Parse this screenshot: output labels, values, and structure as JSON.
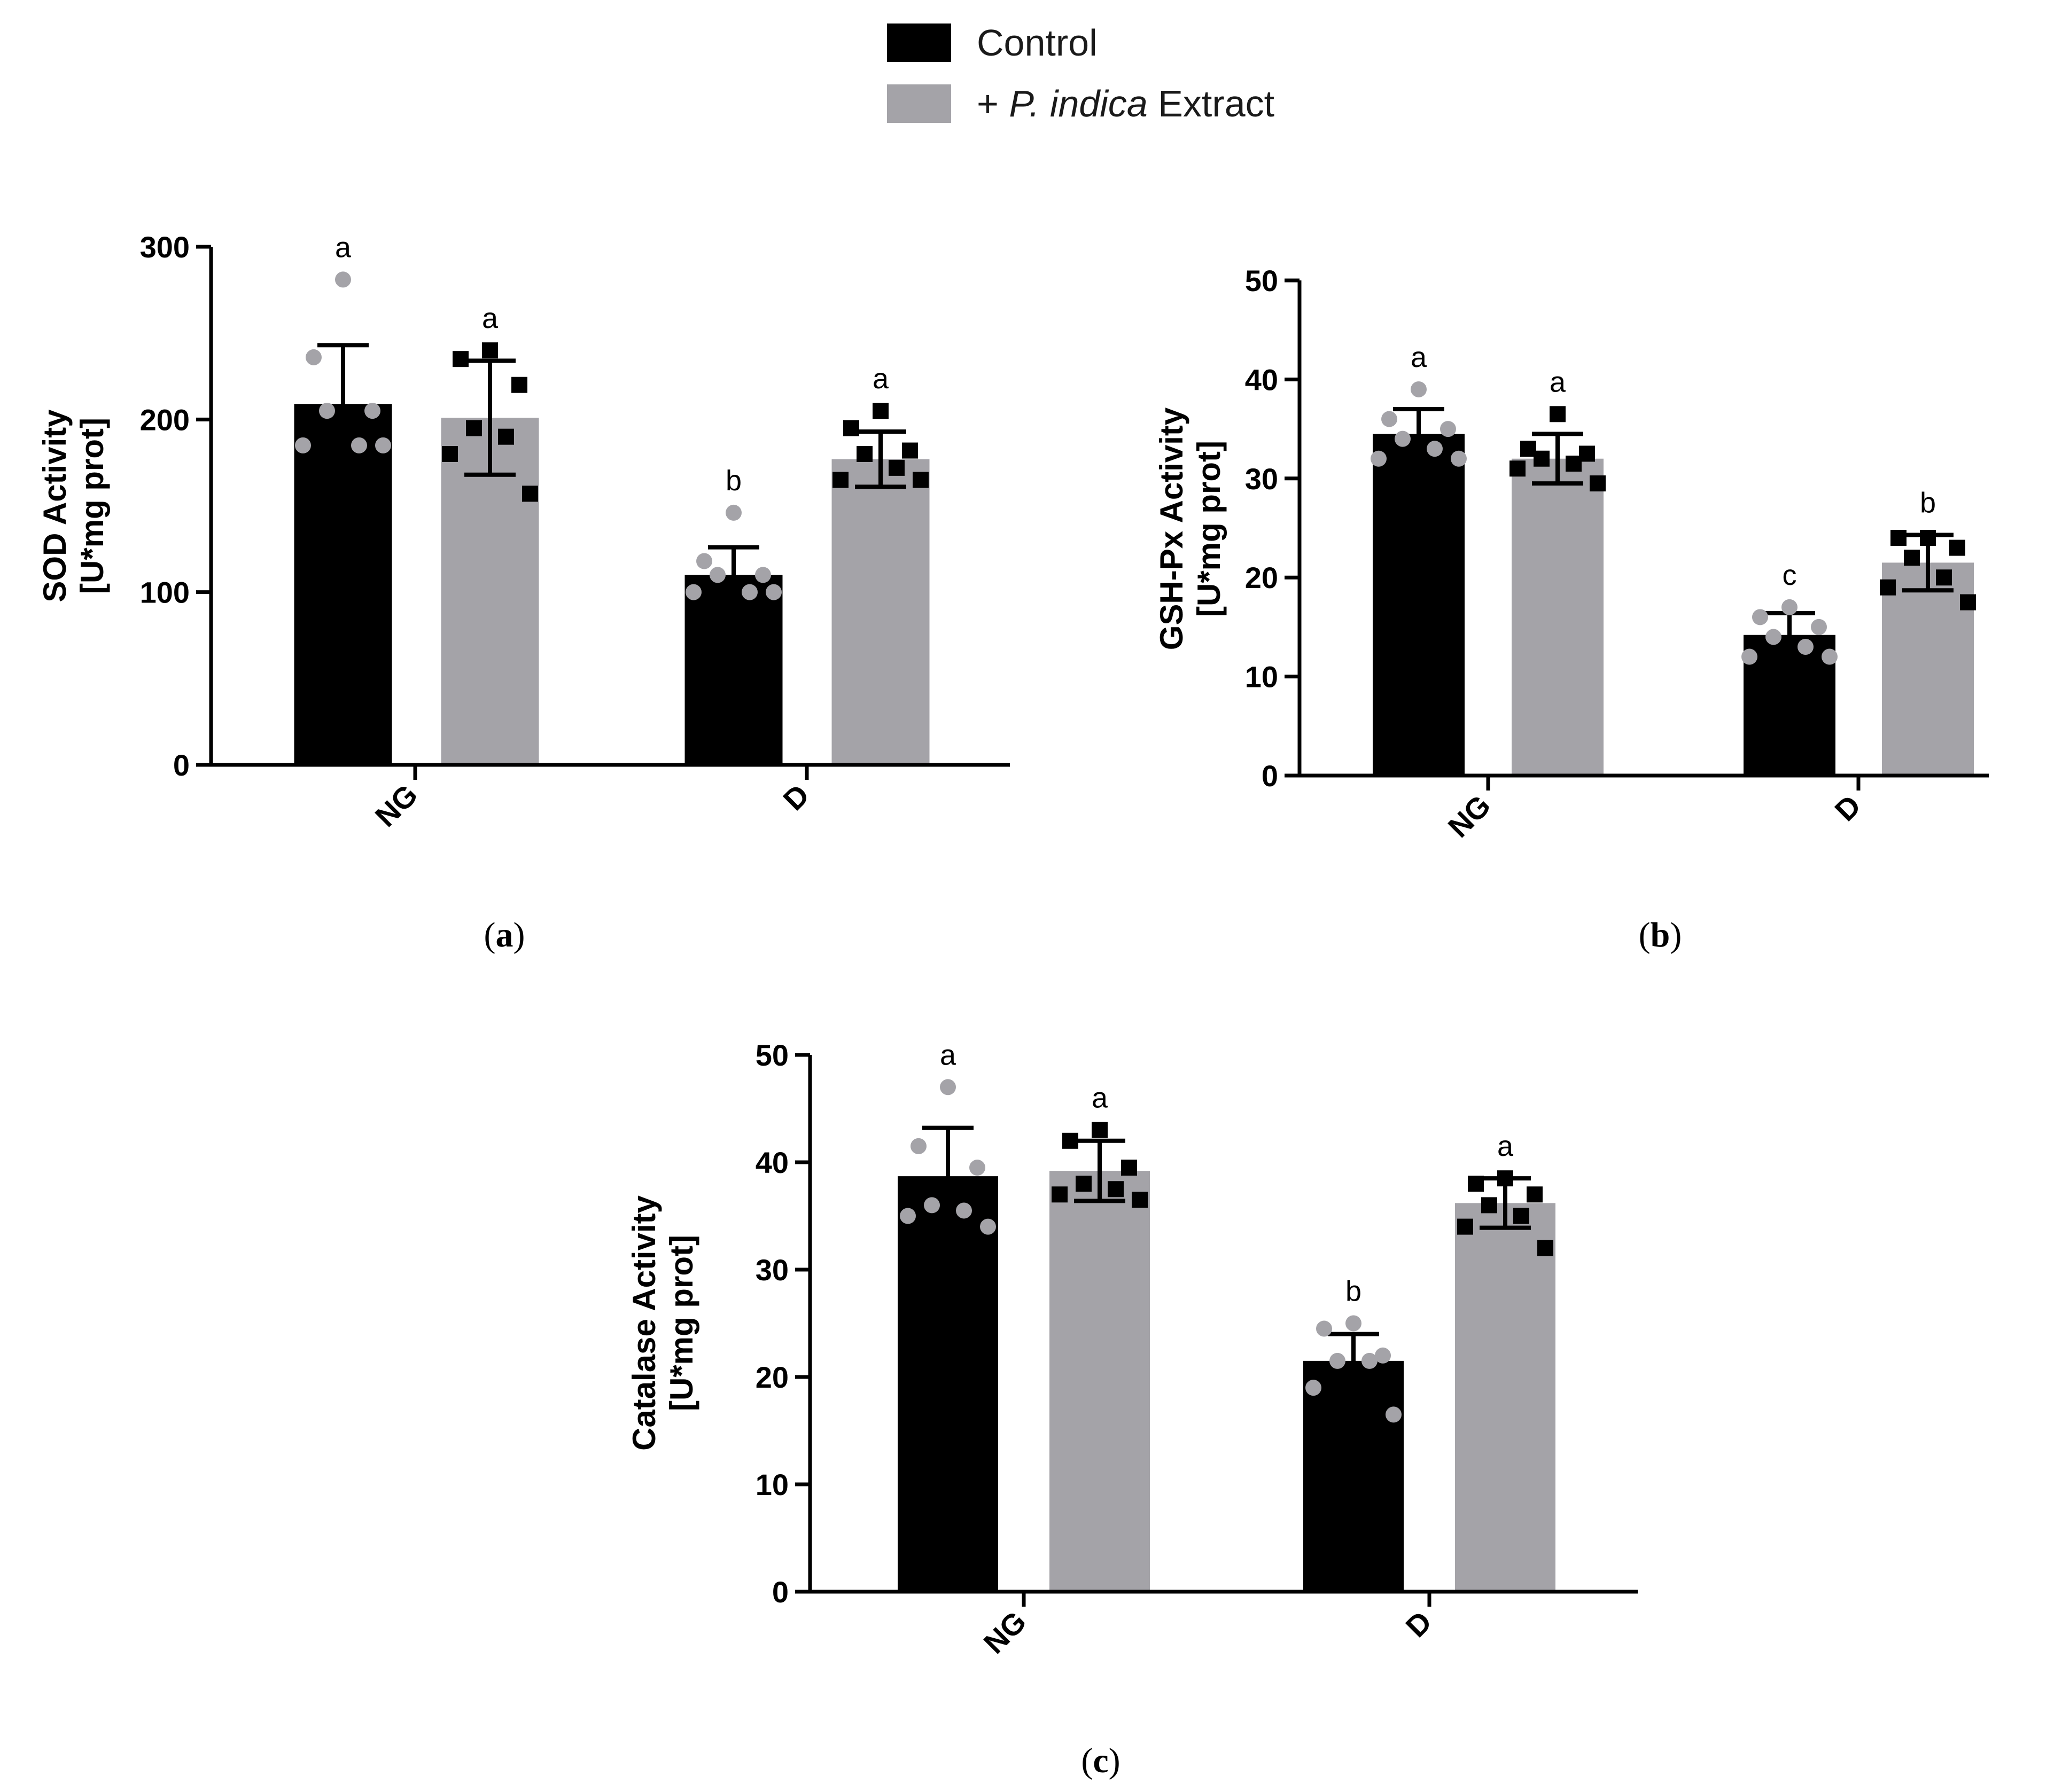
{
  "legend": {
    "control_label": "Control",
    "extract_prefix": "+ ",
    "extract_italic": "P. indica",
    "extract_suffix": " Extract"
  },
  "colors": {
    "control": "#000000",
    "extract": "#a4a3a8",
    "control_points": "#a4a3a8",
    "extract_points": "#000000"
  },
  "chart_data": [
    {
      "type": "bar",
      "panel_label": "(a)",
      "ylabel_line1": "SOD Activity",
      "ylabel_line2": "[U*mg prot]",
      "ylim": [
        0,
        300
      ],
      "yticks": [
        0,
        100,
        200,
        300
      ],
      "categories": [
        "NG",
        "D"
      ],
      "series": [
        {
          "name": "Control",
          "values": [
            209,
            110
          ],
          "errors": [
            34,
            16
          ],
          "letters": [
            "a",
            "b"
          ],
          "points": [
            [
              281,
              236,
              205,
              205,
              185,
              185,
              185
            ],
            [
              146,
              118,
              110,
              110,
              100,
              100,
              100
            ]
          ]
        },
        {
          "name": "+ P. indica Extract",
          "values": [
            201,
            177
          ],
          "errors": [
            33,
            16
          ],
          "letters": [
            "a",
            "a"
          ],
          "points": [
            [
              240,
              235,
              220,
              195,
              190,
              180,
              157
            ],
            [
              205,
              195,
              182,
              180,
              172,
              165,
              165
            ]
          ]
        }
      ]
    },
    {
      "type": "bar",
      "panel_label": "(b)",
      "ylabel_line1": "GSH-Px Activity",
      "ylabel_line2": "[U*mg prot]",
      "ylim": [
        0,
        50
      ],
      "yticks": [
        0,
        10,
        20,
        30,
        40,
        50
      ],
      "categories": [
        "NG",
        "D"
      ],
      "series": [
        {
          "name": "Control",
          "values": [
            34.5,
            14.2
          ],
          "errors": [
            2.5,
            2.2
          ],
          "letters": [
            "a",
            "c"
          ],
          "points": [
            [
              39,
              36,
              35,
              34,
              33,
              32,
              32
            ],
            [
              17,
              16,
              15,
              14,
              13,
              12,
              12
            ]
          ]
        },
        {
          "name": "+ P. indica Extract",
          "values": [
            32,
            21.5
          ],
          "errors": [
            2.5,
            2.8
          ],
          "letters": [
            "a",
            "b"
          ],
          "points": [
            [
              36.5,
              33,
              32.5,
              32,
              31.5,
              31,
              29.5
            ],
            [
              24,
              24,
              23,
              22,
              20,
              19,
              17.5
            ]
          ]
        }
      ]
    },
    {
      "type": "bar",
      "panel_label": "(c)",
      "ylabel_line1": "Catalase Activity",
      "ylabel_line2": "[U*mg prot]",
      "ylim": [
        0,
        50
      ],
      "yticks": [
        0,
        10,
        20,
        30,
        40,
        50
      ],
      "categories": [
        "NG",
        "D"
      ],
      "series": [
        {
          "name": "Control",
          "values": [
            38.7,
            21.5
          ],
          "errors": [
            4.5,
            2.5
          ],
          "letters": [
            "a",
            "b"
          ],
          "points": [
            [
              47,
              41.5,
              39.5,
              36,
              35.5,
              35,
              34
            ],
            [
              25,
              24.5,
              22,
              21.5,
              21.5,
              19,
              16.5
            ]
          ]
        },
        {
          "name": "+ P. indica Extract",
          "values": [
            39.2,
            36.2
          ],
          "errors": [
            2.8,
            2.3
          ],
          "letters": [
            "a",
            "a"
          ],
          "points": [
            [
              43,
              42,
              39.5,
              38,
              37.5,
              37,
              36.5
            ],
            [
              38.5,
              38,
              37,
              36,
              35,
              34,
              32
            ]
          ]
        }
      ]
    }
  ]
}
